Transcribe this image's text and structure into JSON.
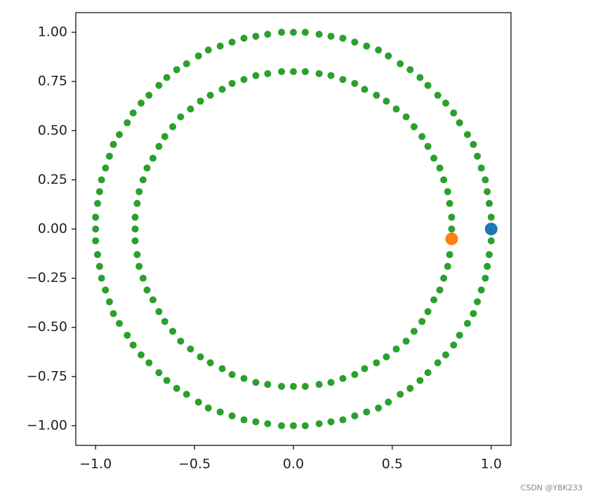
{
  "chart_data": {
    "type": "scatter",
    "xlim": [
      -1.1,
      1.1
    ],
    "ylim": [
      -1.1,
      1.1
    ],
    "xticks": [
      {
        "value": -1.0,
        "label": "−1.0"
      },
      {
        "value": -0.5,
        "label": "−0.5"
      },
      {
        "value": 0,
        "label": "0.0"
      },
      {
        "value": 0.5,
        "label": "0.5"
      },
      {
        "value": 1.0,
        "label": "1.0"
      }
    ],
    "yticks": [
      {
        "value": -1.0,
        "label": "−1.00"
      },
      {
        "value": -0.75,
        "label": "−0.75"
      },
      {
        "value": -0.5,
        "label": "−0.50"
      },
      {
        "value": -0.25,
        "label": "−0.25"
      },
      {
        "value": 0,
        "label": "0.00"
      },
      {
        "value": 0.25,
        "label": "0.25"
      },
      {
        "value": 0.5,
        "label": "0.50"
      },
      {
        "value": 0.75,
        "label": "0.75"
      },
      {
        "value": 1.0,
        "label": "1.00"
      }
    ],
    "series": [
      {
        "color": "#2ca02c",
        "x": [
          1,
          1,
          0.99,
          0.98,
          0.97,
          0.95,
          0.93,
          0.91,
          0.88,
          0.84,
          0.81,
          0.77,
          0.73,
          0.68,
          0.64,
          0.59,
          0.54,
          0.48,
          0.43,
          0.37,
          0.31,
          0.25,
          0.19,
          0.13,
          0.06,
          0,
          -0.06,
          -0.13,
          -0.19,
          -0.25,
          -0.31,
          -0.37,
          -0.43,
          -0.48,
          -0.54,
          -0.59,
          -0.64,
          -0.68,
          -0.73,
          -0.77,
          -0.81,
          -0.84,
          -0.88,
          -0.91,
          -0.93,
          -0.95,
          -0.97,
          -0.98,
          -0.99,
          -1,
          -1,
          -1,
          -0.99,
          -0.98,
          -0.97,
          -0.95,
          -0.93,
          -0.91,
          -0.88,
          -0.84,
          -0.81,
          -0.77,
          -0.73,
          -0.68,
          -0.64,
          -0.59,
          -0.54,
          -0.48,
          -0.43,
          -0.37,
          -0.31,
          -0.25,
          -0.19,
          -0.13,
          -0.06,
          0,
          0.06,
          0.13,
          0.19,
          0.25,
          0.31,
          0.37,
          0.43,
          0.48,
          0.54,
          0.59,
          0.64,
          0.68,
          0.73,
          0.77,
          0.81,
          0.84,
          0.88,
          0.91,
          0.93,
          0.95,
          0.97,
          0.98,
          0.99,
          1
        ],
        "values": [
          0,
          0.06,
          0.13,
          0.19,
          0.25,
          0.31,
          0.37,
          0.43,
          0.48,
          0.54,
          0.59,
          0.64,
          0.68,
          0.73,
          0.77,
          0.81,
          0.84,
          0.88,
          0.91,
          0.93,
          0.95,
          0.97,
          0.98,
          0.99,
          1,
          1,
          1,
          0.99,
          0.98,
          0.97,
          0.95,
          0.93,
          0.91,
          0.88,
          0.84,
          0.81,
          0.77,
          0.73,
          0.68,
          0.64,
          0.59,
          0.54,
          0.48,
          0.43,
          0.37,
          0.31,
          0.25,
          0.19,
          0.13,
          0.06,
          0,
          -0.06,
          -0.13,
          -0.19,
          -0.25,
          -0.31,
          -0.37,
          -0.43,
          -0.48,
          -0.54,
          -0.59,
          -0.64,
          -0.68,
          -0.73,
          -0.77,
          -0.81,
          -0.84,
          -0.88,
          -0.91,
          -0.93,
          -0.95,
          -0.97,
          -0.98,
          -0.99,
          -1,
          -1,
          -1,
          -0.99,
          -0.98,
          -0.97,
          -0.95,
          -0.93,
          -0.91,
          -0.88,
          -0.84,
          -0.81,
          -0.77,
          -0.73,
          -0.68,
          -0.64,
          -0.59,
          -0.54,
          -0.48,
          -0.43,
          -0.37,
          -0.31,
          -0.25,
          -0.19,
          -0.13,
          -0.06
        ]
      },
      {
        "color": "#2ca02c",
        "x": [
          0.8,
          0.8,
          0.79,
          0.78,
          0.76,
          0.74,
          0.71,
          0.68,
          0.65,
          0.61,
          0.57,
          0.52,
          0.47,
          0.42,
          0.36,
          0.31,
          0.25,
          0.19,
          0.13,
          0.06,
          0,
          -0.06,
          -0.13,
          -0.19,
          -0.25,
          -0.31,
          -0.36,
          -0.42,
          -0.47,
          -0.52,
          -0.57,
          -0.61,
          -0.65,
          -0.68,
          -0.71,
          -0.74,
          -0.76,
          -0.78,
          -0.79,
          -0.8,
          -0.8,
          -0.8,
          -0.79,
          -0.78,
          -0.76,
          -0.74,
          -0.71,
          -0.68,
          -0.65,
          -0.61,
          -0.57,
          -0.52,
          -0.47,
          -0.42,
          -0.36,
          -0.31,
          -0.25,
          -0.19,
          -0.13,
          -0.06,
          0,
          0.06,
          0.13,
          0.19,
          0.25,
          0.31,
          0.36,
          0.42,
          0.47,
          0.52,
          0.57,
          0.61,
          0.65,
          0.68,
          0.71,
          0.74,
          0.76,
          0.78,
          0.79,
          0.8
        ],
        "values": [
          0,
          0.06,
          0.13,
          0.19,
          0.25,
          0.31,
          0.36,
          0.42,
          0.47,
          0.52,
          0.57,
          0.61,
          0.65,
          0.68,
          0.71,
          0.74,
          0.76,
          0.78,
          0.79,
          0.8,
          0.8,
          0.8,
          0.79,
          0.78,
          0.76,
          0.74,
          0.71,
          0.68,
          0.65,
          0.61,
          0.57,
          0.52,
          0.47,
          0.42,
          0.36,
          0.31,
          0.25,
          0.19,
          0.13,
          0.06,
          0,
          -0.06,
          -0.13,
          -0.19,
          -0.25,
          -0.31,
          -0.36,
          -0.42,
          -0.47,
          -0.52,
          -0.57,
          -0.61,
          -0.65,
          -0.68,
          -0.71,
          -0.74,
          -0.76,
          -0.78,
          -0.79,
          -0.8,
          -0.8,
          -0.8,
          -0.79,
          -0.78,
          -0.76,
          -0.74,
          -0.71,
          -0.68,
          -0.65,
          -0.61,
          -0.57,
          -0.52,
          -0.47,
          -0.42,
          -0.36,
          -0.31,
          -0.25,
          -0.19,
          -0.13,
          -0.06
        ]
      },
      {
        "color": "#1f77b4",
        "x": [
          1.0
        ],
        "values": [
          0
        ]
      },
      {
        "color": "#ff7f0e",
        "x": [
          0.8
        ],
        "values": [
          -0.05
        ]
      }
    ]
  },
  "watermark": "CSDN @YBK233"
}
